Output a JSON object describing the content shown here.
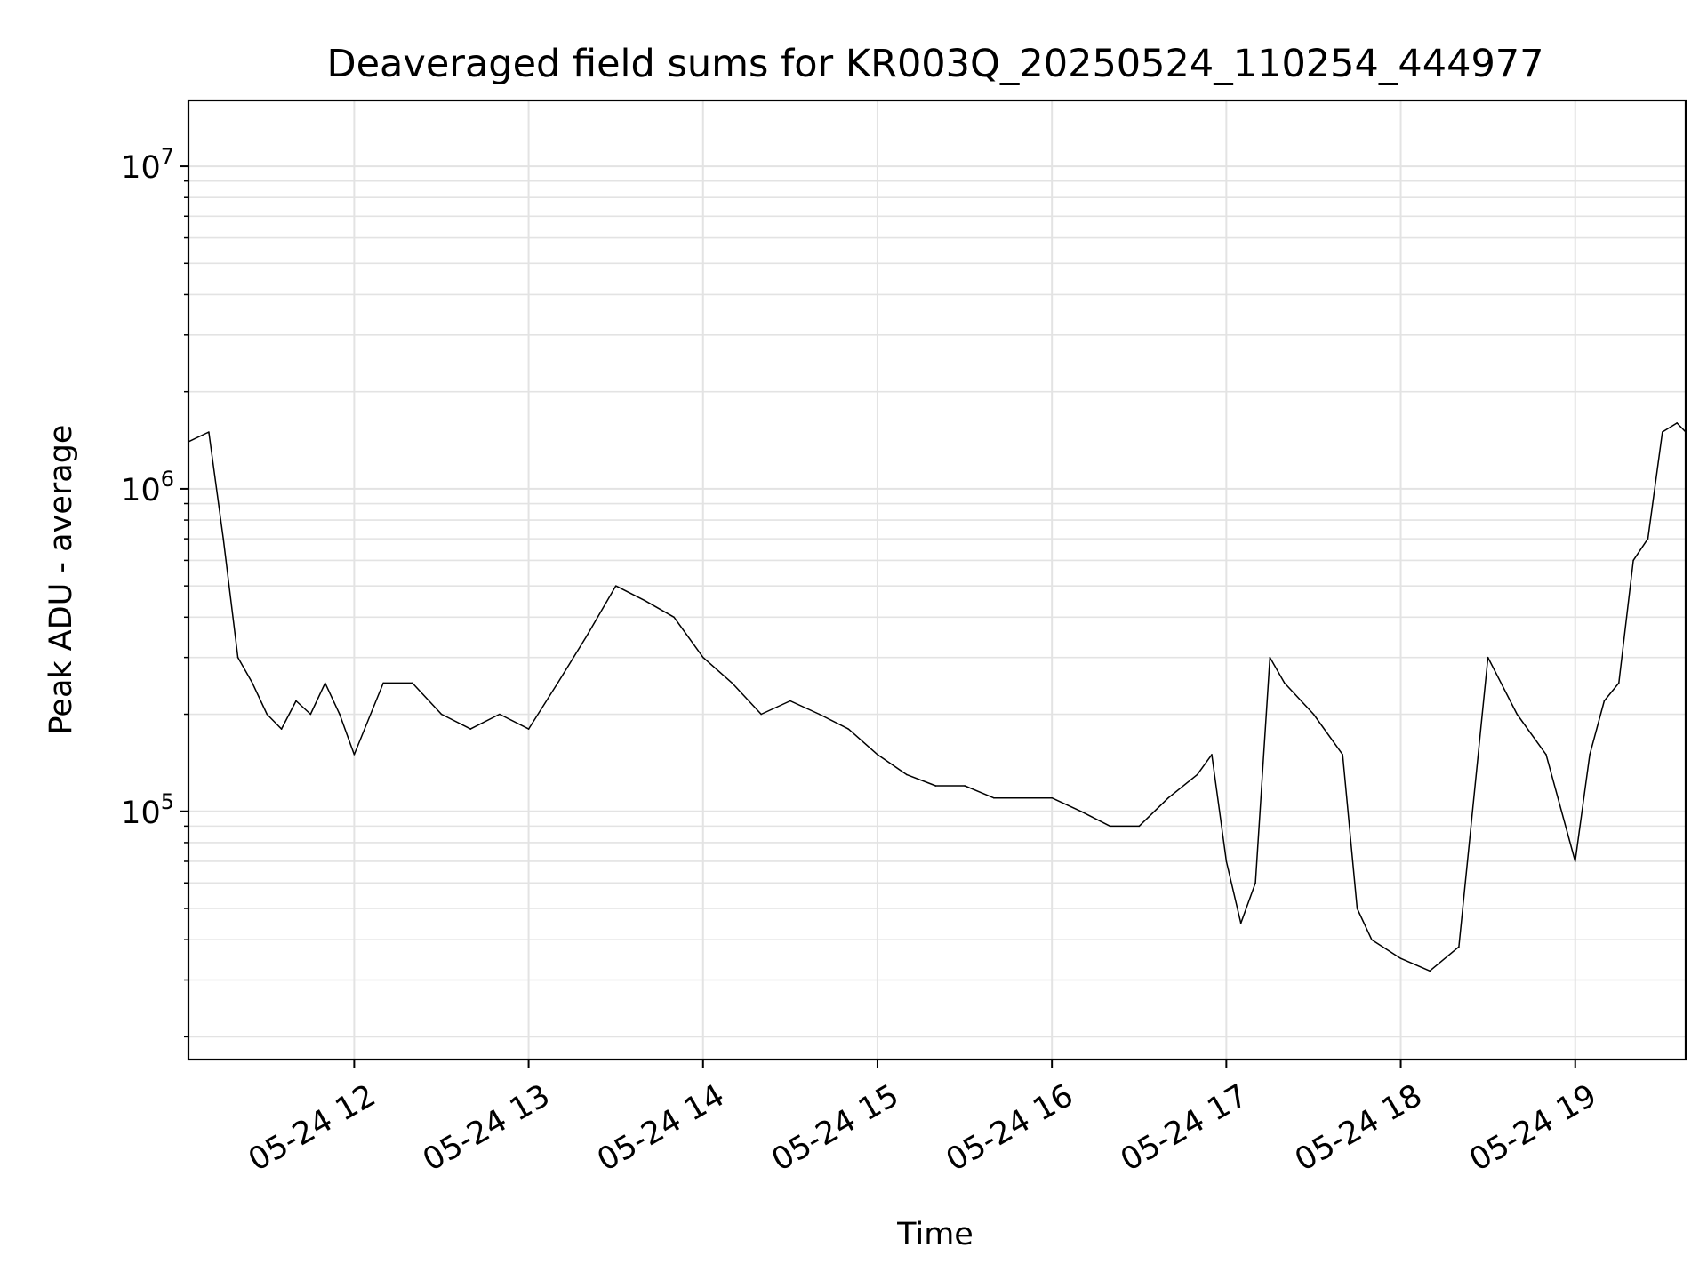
{
  "chart_data": {
    "type": "line",
    "title": "Deaveraged field sums for KR003Q_20250524_110254_444977",
    "xlabel": "Time",
    "ylabel": "Peak ADU - average",
    "yscale": "log",
    "ylim": [
      17000,
      16000000
    ],
    "xlim": [
      "2025-05-24 11:03",
      "2025-05-24 19:38"
    ],
    "grid": true,
    "legend": "none",
    "line_color": "#000000",
    "x_ticks": [
      "05-24 12",
      "05-24 13",
      "05-24 14",
      "05-24 15",
      "05-24 16",
      "05-24 17",
      "05-24 18",
      "05-24 19"
    ],
    "y_ticks": [
      {
        "base": "10",
        "exp": "5",
        "value": 100000
      },
      {
        "base": "10",
        "exp": "6",
        "value": 1000000
      },
      {
        "base": "10",
        "exp": "7",
        "value": 10000000
      }
    ],
    "series": [
      {
        "x": [
          "2025-05-24 11:03",
          "2025-05-24 11:10",
          "2025-05-24 11:15",
          "2025-05-24 11:20",
          "2025-05-24 11:25",
          "2025-05-24 11:30",
          "2025-05-24 11:35",
          "2025-05-24 11:40",
          "2025-05-24 11:45",
          "2025-05-24 11:50",
          "2025-05-24 11:55",
          "2025-05-24 12:00",
          "2025-05-24 12:10",
          "2025-05-24 12:20",
          "2025-05-24 12:30",
          "2025-05-24 12:40",
          "2025-05-24 12:50",
          "2025-05-24 13:00",
          "2025-05-24 13:10",
          "2025-05-24 13:20",
          "2025-05-24 13:30",
          "2025-05-24 13:40",
          "2025-05-24 13:50",
          "2025-05-24 14:00",
          "2025-05-24 14:10",
          "2025-05-24 14:20",
          "2025-05-24 14:30",
          "2025-05-24 14:40",
          "2025-05-24 14:50",
          "2025-05-24 15:00",
          "2025-05-24 15:10",
          "2025-05-24 15:20",
          "2025-05-24 15:30",
          "2025-05-24 15:40",
          "2025-05-24 15:50",
          "2025-05-24 16:00",
          "2025-05-24 16:10",
          "2025-05-24 16:20",
          "2025-05-24 16:30",
          "2025-05-24 16:40",
          "2025-05-24 16:50",
          "2025-05-24 16:55",
          "2025-05-24 17:00",
          "2025-05-24 17:05",
          "2025-05-24 17:10",
          "2025-05-24 17:15",
          "2025-05-24 17:20",
          "2025-05-24 17:30",
          "2025-05-24 17:40",
          "2025-05-24 17:45",
          "2025-05-24 17:50",
          "2025-05-24 18:00",
          "2025-05-24 18:10",
          "2025-05-24 18:20",
          "2025-05-24 18:30",
          "2025-05-24 18:40",
          "2025-05-24 18:50",
          "2025-05-24 19:00",
          "2025-05-24 19:05",
          "2025-05-24 19:10",
          "2025-05-24 19:15",
          "2025-05-24 19:20",
          "2025-05-24 19:25",
          "2025-05-24 19:30",
          "2025-05-24 19:35",
          "2025-05-24 19:38"
        ],
        "y": [
          1400000,
          1500000,
          700000,
          300000,
          250000,
          200000,
          180000,
          220000,
          200000,
          250000,
          200000,
          150000,
          250000,
          250000,
          200000,
          180000,
          200000,
          180000,
          250000,
          350000,
          500000,
          450000,
          400000,
          300000,
          250000,
          200000,
          220000,
          200000,
          180000,
          150000,
          130000,
          120000,
          120000,
          110000,
          110000,
          110000,
          100000,
          90000,
          90000,
          110000,
          130000,
          150000,
          70000,
          45000,
          60000,
          300000,
          250000,
          200000,
          150000,
          50000,
          40000,
          35000,
          32000,
          38000,
          300000,
          200000,
          150000,
          70000,
          150000,
          220000,
          250000,
          600000,
          700000,
          1500000,
          1600000,
          1500000
        ]
      }
    ]
  }
}
